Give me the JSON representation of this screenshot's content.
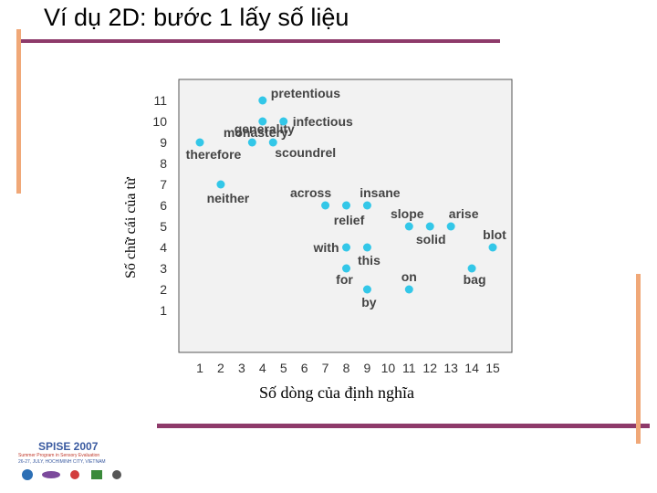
{
  "slide": {
    "title": "Ví dụ 2D: bước 1 lấy số liệu"
  },
  "logo": {
    "name": "SPISE 2007",
    "line1": "Summer Program in Sensory Evaluation",
    "line2": "26-27, JULY, HOCHIMINH CITY, VIETNAM"
  },
  "colors": {
    "point": "#33c7e8",
    "plot_bg": "#f2f2f2",
    "accent_line": "#8e3a6a",
    "accent_bar": "#f0a878"
  },
  "chart_data": {
    "type": "scatter",
    "xlabel": "Số dòng của định nghĩa",
    "ylabel": "Số chữ cái của từ",
    "x_ticks": [
      1,
      2,
      3,
      4,
      5,
      6,
      7,
      8,
      9,
      10,
      11,
      12,
      13,
      14,
      15
    ],
    "y_ticks": [
      1,
      2,
      3,
      4,
      5,
      6,
      7,
      8,
      9,
      10,
      11
    ],
    "xlim": [
      0,
      16
    ],
    "ylim": [
      -1,
      12
    ],
    "grid": false,
    "points": [
      {
        "label": "pretentious",
        "x": 4,
        "y": 11
      },
      {
        "label": "generality",
        "x": 4,
        "y": 10
      },
      {
        "label": "infectious",
        "x": 5,
        "y": 10
      },
      {
        "label": "monastery",
        "x": 3.5,
        "y": 9
      },
      {
        "label": "therefore",
        "x": 1,
        "y": 9
      },
      {
        "label": "scoundrel",
        "x": 4.5,
        "y": 9
      },
      {
        "label": "neither",
        "x": 2,
        "y": 7
      },
      {
        "label": "across",
        "x": 7,
        "y": 6
      },
      {
        "label": "insane",
        "x": 9,
        "y": 6
      },
      {
        "label": "relief",
        "x": 8,
        "y": 6
      },
      {
        "label": "slope",
        "x": 11,
        "y": 5
      },
      {
        "label": "arise",
        "x": 13,
        "y": 5
      },
      {
        "label": "solid",
        "x": 12,
        "y": 5
      },
      {
        "label": "blot",
        "x": 15,
        "y": 4
      },
      {
        "label": "with",
        "x": 8,
        "y": 4
      },
      {
        "label": "this",
        "x": 9,
        "y": 4
      },
      {
        "label": "for",
        "x": 8,
        "y": 3
      },
      {
        "label": "on",
        "x": 11,
        "y": 2
      },
      {
        "label": "bag",
        "x": 14,
        "y": 3
      },
      {
        "label": "by",
        "x": 9,
        "y": 2
      }
    ]
  }
}
